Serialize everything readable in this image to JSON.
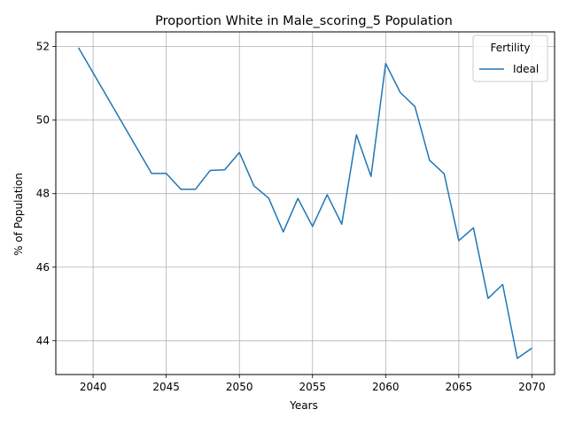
{
  "chart_data": {
    "type": "line",
    "title": "Proportion White in Male_scoring_5 Population",
    "xlabel": "Years",
    "ylabel": "% of Population",
    "xlim": [
      2037.45,
      2071.55
    ],
    "ylim": [
      43.08,
      52.4
    ],
    "xticks": [
      2040,
      2045,
      2050,
      2055,
      2060,
      2065,
      2070
    ],
    "yticks": [
      44,
      46,
      48,
      50,
      52
    ],
    "grid": true,
    "legend": {
      "title": "Fertility",
      "position": "top-right"
    },
    "series": [
      {
        "name": "Ideal",
        "color": "#1f77b4",
        "x": [
          2039,
          2044,
          2045,
          2046,
          2047,
          2048,
          2049,
          2050,
          2051,
          2052,
          2053,
          2054,
          2055,
          2056,
          2057,
          2058,
          2059,
          2060,
          2061,
          2062,
          2063,
          2064,
          2065,
          2066,
          2067,
          2068,
          2069,
          2070
        ],
        "y": [
          51.97,
          48.55,
          48.55,
          48.12,
          48.12,
          48.63,
          48.65,
          49.12,
          48.21,
          47.88,
          46.96,
          47.87,
          47.11,
          47.97,
          47.17,
          49.6,
          48.47,
          51.54,
          50.75,
          50.37,
          48.91,
          48.54,
          46.72,
          47.07,
          45.15,
          45.53,
          43.52,
          43.8
        ]
      }
    ]
  }
}
